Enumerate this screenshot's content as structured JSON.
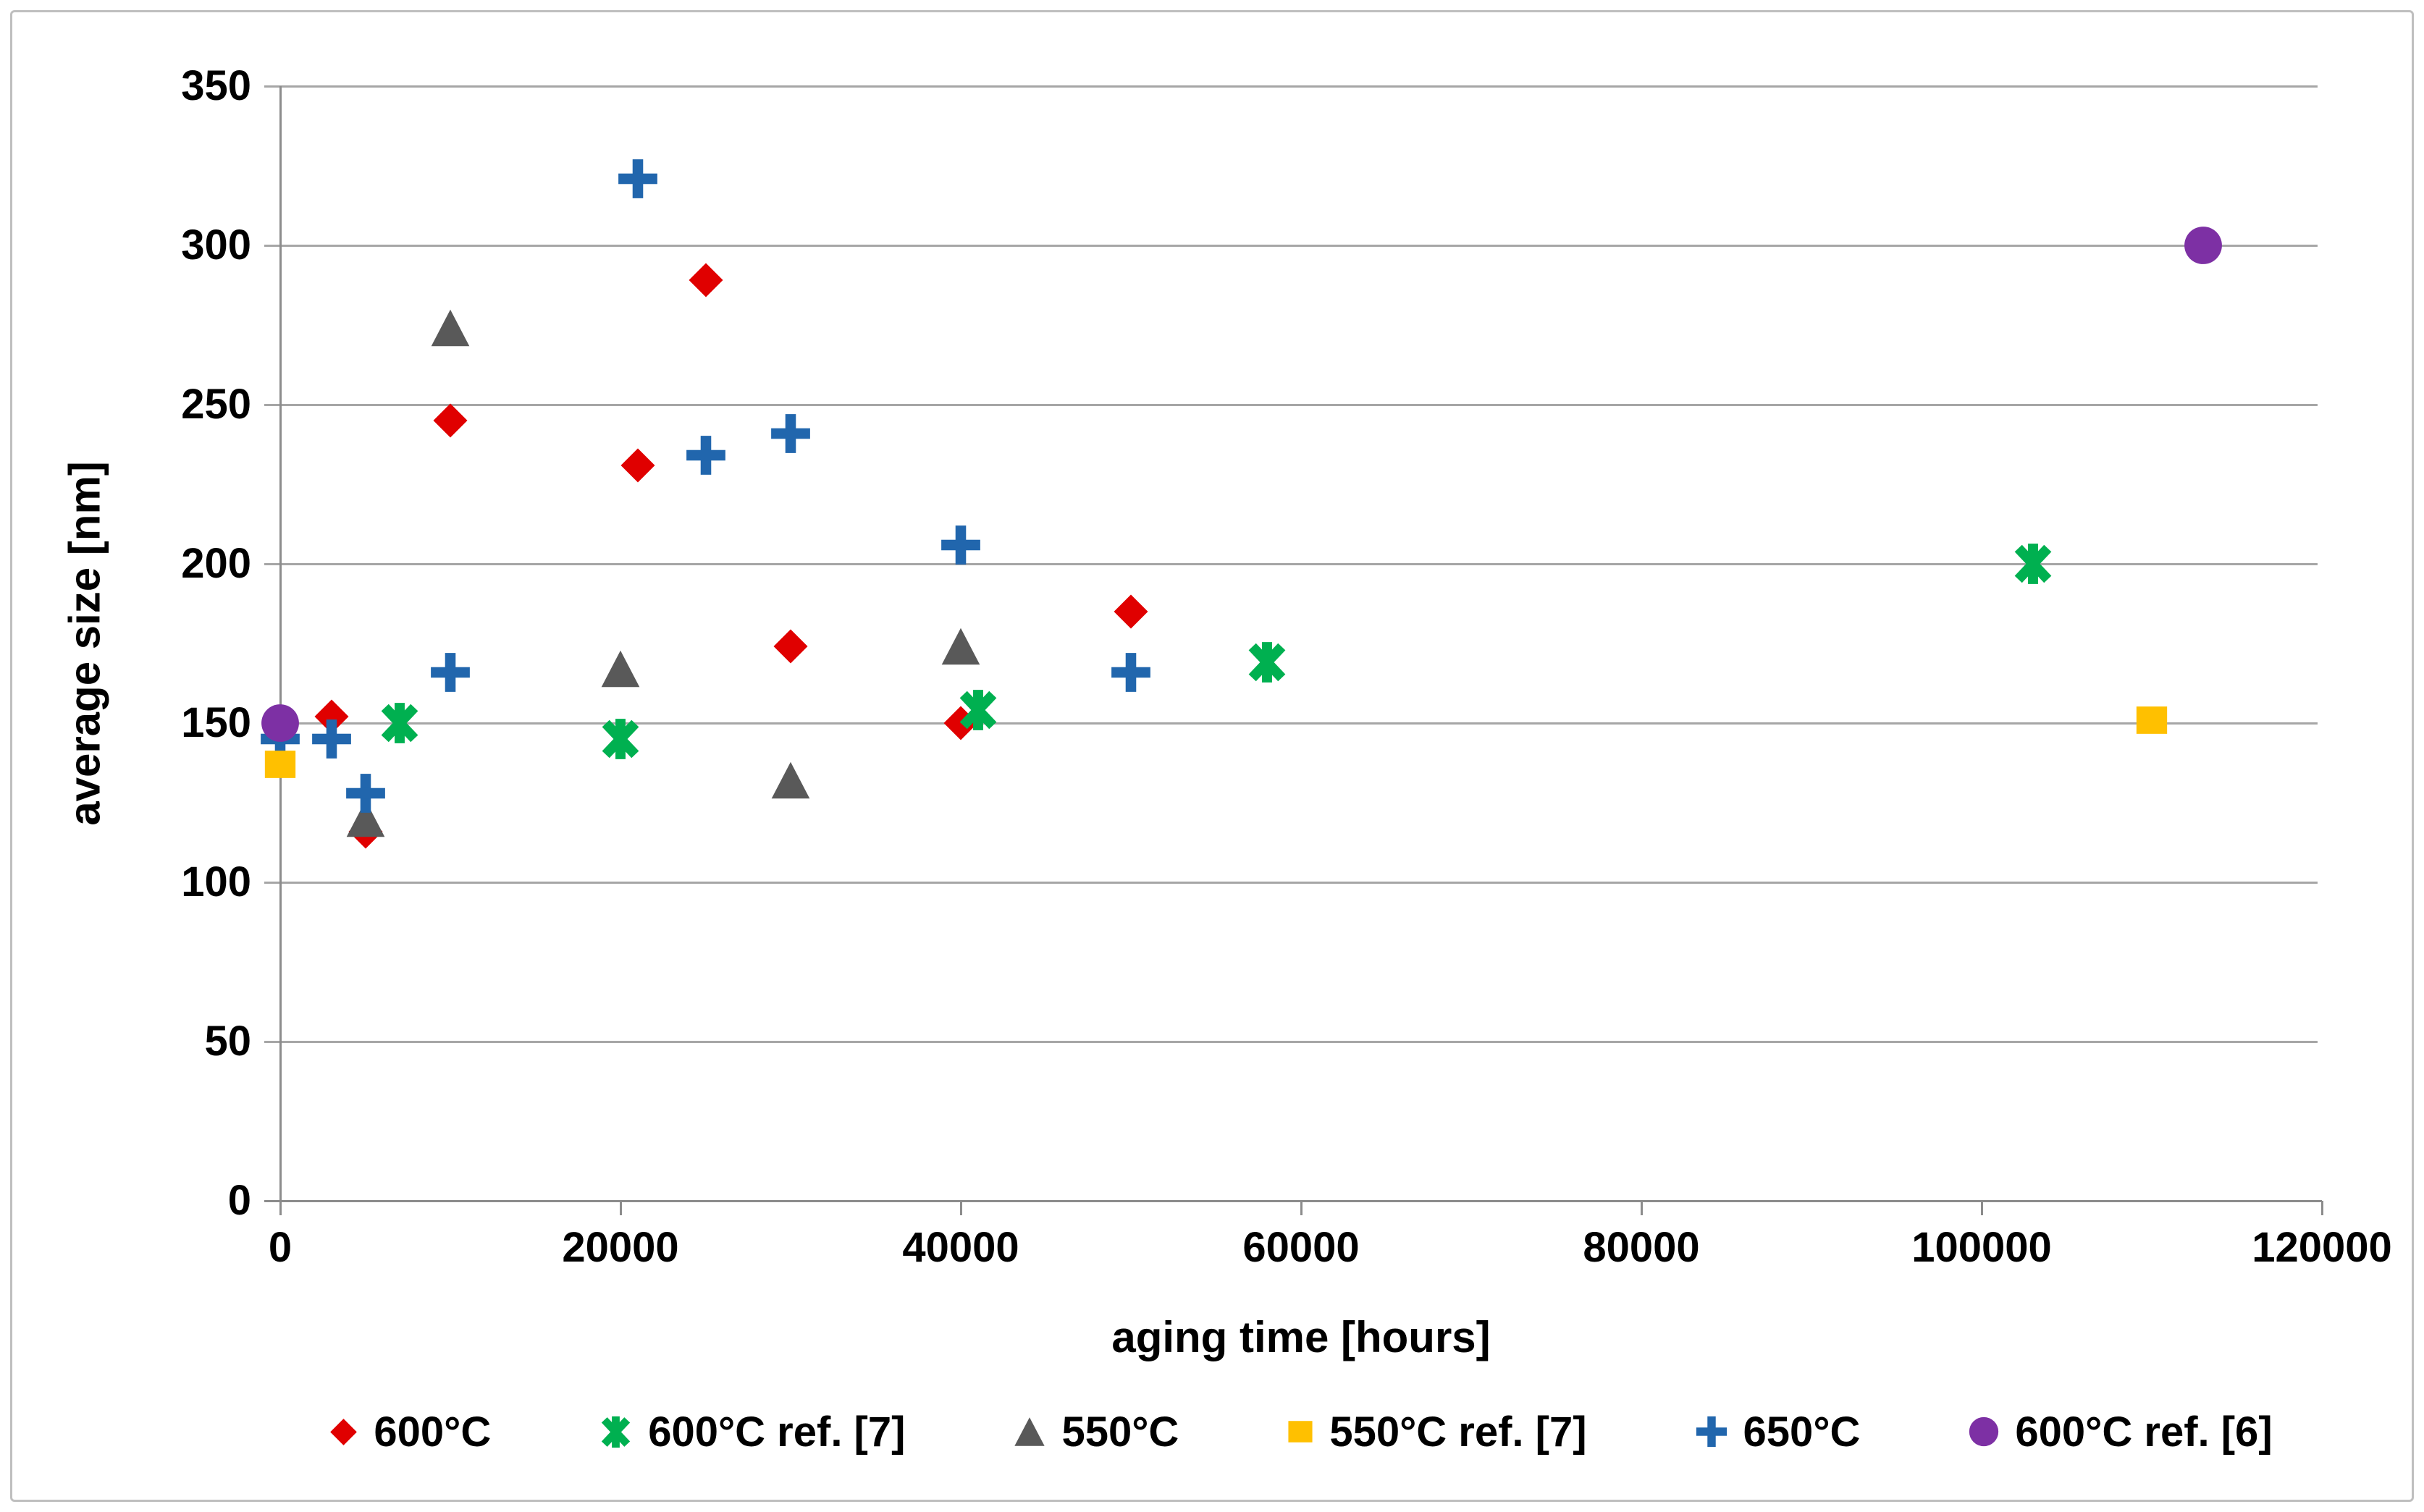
{
  "window": {
    "background": "#ffffff",
    "border_color": "#bfbfbf"
  },
  "chart_data": {
    "type": "scatter",
    "title": "",
    "xlabel": "aging time [hours]",
    "ylabel": "average size [nm]",
    "xlim": [
      0,
      120000
    ],
    "ylim": [
      0,
      350
    ],
    "x_ticks": [
      0,
      20000,
      40000,
      60000,
      80000,
      100000,
      120000
    ],
    "y_ticks": [
      0,
      50,
      100,
      150,
      200,
      250,
      300,
      350
    ],
    "grid": "horizontal-only",
    "gridline_color": "#a6a6a6",
    "axis_color": "#8c8c8c",
    "text_color": "#000000",
    "legend_position": "bottom",
    "series": [
      {
        "name": "600°C",
        "marker": "diamond",
        "color": "#e00000",
        "points": [
          [
            3000,
            152
          ],
          [
            5000,
            116
          ],
          [
            10000,
            245
          ],
          [
            21000,
            231
          ],
          [
            25000,
            289
          ],
          [
            30000,
            174
          ],
          [
            40000,
            150
          ],
          [
            50000,
            185
          ]
        ]
      },
      {
        "name": "600°C ref. [7]",
        "marker": "star",
        "color": "#00b050",
        "points": [
          [
            7000,
            150
          ],
          [
            20000,
            145
          ],
          [
            41000,
            154
          ],
          [
            58000,
            169
          ],
          [
            103000,
            200
          ]
        ]
      },
      {
        "name": "550°C",
        "marker": "triangle",
        "color": "#595959",
        "points": [
          [
            5000,
            120
          ],
          [
            10000,
            274
          ],
          [
            20000,
            167
          ],
          [
            30000,
            132
          ],
          [
            40000,
            174
          ]
        ]
      },
      {
        "name": "550°C ref. [7]",
        "marker": "square",
        "color": "#ffc000",
        "points": [
          [
            0,
            137
          ],
          [
            110000,
            151
          ]
        ]
      },
      {
        "name": "650°C",
        "marker": "plus",
        "color": "#2166ad",
        "points": [
          [
            0,
            145
          ],
          [
            3000,
            145
          ],
          [
            5000,
            128
          ],
          [
            10000,
            166
          ],
          [
            21000,
            321
          ],
          [
            25000,
            234
          ],
          [
            30000,
            241
          ],
          [
            40000,
            206
          ],
          [
            50000,
            166
          ]
        ]
      },
      {
        "name": "600°C ref. [6]",
        "marker": "circle",
        "color": "#7d30a4",
        "points": [
          [
            0,
            150
          ],
          [
            113000,
            300
          ]
        ]
      }
    ]
  }
}
